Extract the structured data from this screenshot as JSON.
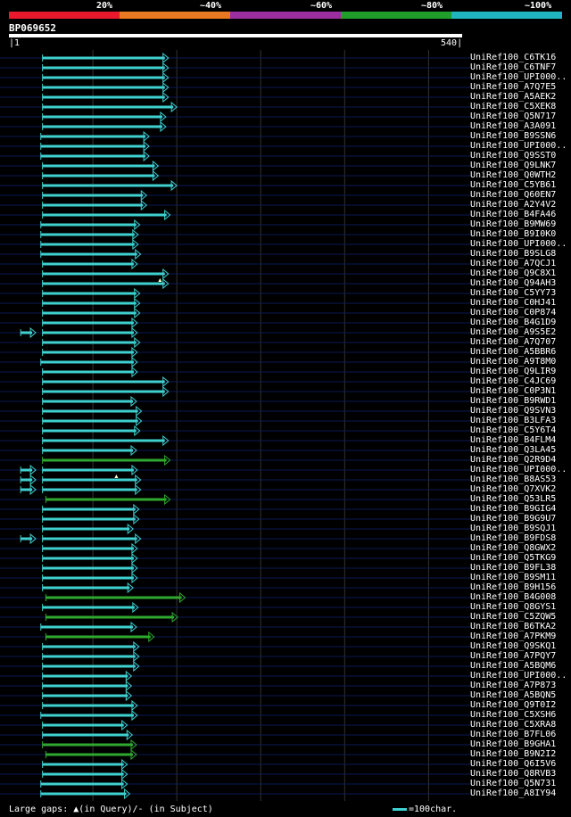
{
  "legend": [
    {
      "label": "20%",
      "color": "#e8192c"
    },
    {
      "label": "~40%",
      "color": "#e87920"
    },
    {
      "label": "~60%",
      "color": "#9b2fa0"
    },
    {
      "label": "~80%",
      "color": "#1f9e2a"
    },
    {
      "label": "~100%",
      "color": "#1fb4bf"
    }
  ],
  "query": {
    "id": "BP069652",
    "start": "1",
    "end": "540",
    "length": 540
  },
  "colors": {
    "cyan": "#3fd0d0",
    "green": "#2fa82f",
    "grid": "#333333",
    "row_line": "#0a1a55"
  },
  "hits": [
    {
      "name": "UniRef100_C6TK16",
      "start": 40,
      "end": 190,
      "color": "cyan"
    },
    {
      "name": "UniRef100_C6TNF7",
      "start": 40,
      "end": 190,
      "color": "cyan"
    },
    {
      "name": "UniRef100_UPI000..",
      "start": 40,
      "end": 190,
      "color": "cyan"
    },
    {
      "name": "UniRef100_A7Q7E5",
      "start": 40,
      "end": 190,
      "color": "cyan"
    },
    {
      "name": "UniRef100_A5AEK2",
      "start": 40,
      "end": 190,
      "color": "cyan"
    },
    {
      "name": "UniRef100_C5XEK8",
      "start": 40,
      "end": 200,
      "color": "cyan"
    },
    {
      "name": "UniRef100_Q5N717",
      "start": 40,
      "end": 187,
      "color": "cyan"
    },
    {
      "name": "UniRef100_A3A091",
      "start": 40,
      "end": 187,
      "color": "cyan"
    },
    {
      "name": "UniRef100_B9SSN6",
      "start": 38,
      "end": 167,
      "color": "cyan"
    },
    {
      "name": "UniRef100_UPI000..",
      "start": 38,
      "end": 167,
      "color": "cyan"
    },
    {
      "name": "UniRef100_Q9SST0",
      "start": 38,
      "end": 167,
      "color": "cyan"
    },
    {
      "name": "UniRef100_Q9LNK7",
      "start": 40,
      "end": 178,
      "color": "cyan"
    },
    {
      "name": "UniRef100_Q0WTH2",
      "start": 40,
      "end": 178,
      "color": "cyan"
    },
    {
      "name": "UniRef100_C5YB61",
      "start": 40,
      "end": 200,
      "color": "cyan"
    },
    {
      "name": "UniRef100_Q60EN7",
      "start": 40,
      "end": 164,
      "color": "cyan"
    },
    {
      "name": "UniRef100_A2Y4V2",
      "start": 40,
      "end": 164,
      "color": "cyan"
    },
    {
      "name": "UniRef100_B4FA46",
      "start": 40,
      "end": 192,
      "color": "cyan"
    },
    {
      "name": "UniRef100_B9MW69",
      "start": 38,
      "end": 156,
      "color": "cyan"
    },
    {
      "name": "UniRef100_B9I0K0",
      "start": 38,
      "end": 154,
      "color": "cyan"
    },
    {
      "name": "UniRef100_UPI000..",
      "start": 38,
      "end": 154,
      "color": "cyan"
    },
    {
      "name": "UniRef100_B9SLG8",
      "start": 38,
      "end": 157,
      "color": "cyan"
    },
    {
      "name": "UniRef100_A7QCJ1",
      "start": 40,
      "end": 153,
      "color": "cyan"
    },
    {
      "name": "UniRef100_Q9C8X1",
      "start": 40,
      "end": 190,
      "color": "cyan"
    },
    {
      "name": "UniRef100_Q94AH3",
      "start": 40,
      "end": 190,
      "color": "cyan",
      "mark": 180
    },
    {
      "name": "UniRef100_C5YY73",
      "start": 40,
      "end": 156,
      "color": "cyan"
    },
    {
      "name": "UniRef100_C0HJ41",
      "start": 40,
      "end": 156,
      "color": "cyan"
    },
    {
      "name": "UniRef100_C0P874",
      "start": 40,
      "end": 156,
      "color": "cyan"
    },
    {
      "name": "UniRef100_B4G1D9",
      "start": 40,
      "end": 153,
      "color": "cyan"
    },
    {
      "name": "UniRef100_A9S5E2",
      "start": 40,
      "end": 153,
      "color": "cyan",
      "extra": [
        14,
        32
      ]
    },
    {
      "name": "UniRef100_A7Q707",
      "start": 40,
      "end": 156,
      "color": "cyan"
    },
    {
      "name": "UniRef100_A5BBR6",
      "start": 40,
      "end": 153,
      "color": "cyan"
    },
    {
      "name": "UniRef100_A9T8M0",
      "start": 38,
      "end": 153,
      "color": "cyan"
    },
    {
      "name": "UniRef100_Q9LIR9",
      "start": 40,
      "end": 153,
      "color": "cyan"
    },
    {
      "name": "UniRef100_C4JC69",
      "start": 40,
      "end": 190,
      "color": "cyan"
    },
    {
      "name": "UniRef100_C0P3N1",
      "start": 40,
      "end": 190,
      "color": "cyan"
    },
    {
      "name": "UniRef100_B9RWD1",
      "start": 40,
      "end": 152,
      "color": "cyan"
    },
    {
      "name": "UniRef100_Q9SVN3",
      "start": 40,
      "end": 158,
      "color": "cyan"
    },
    {
      "name": "UniRef100_B3LFA3",
      "start": 40,
      "end": 158,
      "color": "cyan"
    },
    {
      "name": "UniRef100_C5Y6T4",
      "start": 40,
      "end": 156,
      "color": "cyan"
    },
    {
      "name": "UniRef100_B4FLM4",
      "start": 40,
      "end": 190,
      "color": "cyan"
    },
    {
      "name": "UniRef100_Q3LA45",
      "start": 40,
      "end": 152,
      "color": "cyan"
    },
    {
      "name": "UniRef100_Q2R9D4",
      "start": 40,
      "end": 192,
      "color": "green"
    },
    {
      "name": "UniRef100_UPI000..",
      "start": 40,
      "end": 153,
      "color": "cyan",
      "extra": [
        14,
        32
      ]
    },
    {
      "name": "UniRef100_B8AS53",
      "start": 40,
      "end": 157,
      "color": "cyan",
      "extra": [
        14,
        32
      ],
      "mark": 128
    },
    {
      "name": "UniRef100_Q7XVK2",
      "start": 40,
      "end": 157,
      "color": "cyan",
      "extra": [
        14,
        32
      ]
    },
    {
      "name": "UniRef100_Q53LR5",
      "start": 44,
      "end": 192,
      "color": "green"
    },
    {
      "name": "UniRef100_B9GIG4",
      "start": 40,
      "end": 155,
      "color": "cyan"
    },
    {
      "name": "UniRef100_B9G9U7",
      "start": 40,
      "end": 155,
      "color": "cyan"
    },
    {
      "name": "UniRef100_B9SQJ1",
      "start": 40,
      "end": 148,
      "color": "cyan"
    },
    {
      "name": "UniRef100_B9FDS8",
      "start": 40,
      "end": 157,
      "color": "cyan",
      "extra": [
        14,
        32
      ]
    },
    {
      "name": "UniRef100_Q8GWX2",
      "start": 40,
      "end": 153,
      "color": "cyan"
    },
    {
      "name": "UniRef100_Q5TKG9",
      "start": 40,
      "end": 153,
      "color": "cyan"
    },
    {
      "name": "UniRef100_B9FL38",
      "start": 40,
      "end": 153,
      "color": "cyan"
    },
    {
      "name": "UniRef100_B9SM11",
      "start": 40,
      "end": 153,
      "color": "cyan"
    },
    {
      "name": "UniRef100_B9H156",
      "start": 40,
      "end": 148,
      "color": "cyan"
    },
    {
      "name": "UniRef100_B4G008",
      "start": 44,
      "end": 210,
      "color": "green"
    },
    {
      "name": "UniRef100_Q8GYS1",
      "start": 40,
      "end": 154,
      "color": "cyan"
    },
    {
      "name": "UniRef100_C5ZQW5",
      "start": 44,
      "end": 201,
      "color": "green"
    },
    {
      "name": "UniRef100_B6TKA2",
      "start": 38,
      "end": 152,
      "color": "cyan"
    },
    {
      "name": "UniRef100_A7PKM9",
      "start": 44,
      "end": 173,
      "color": "green"
    },
    {
      "name": "UniRef100_Q9SKQ1",
      "start": 40,
      "end": 155,
      "color": "cyan"
    },
    {
      "name": "UniRef100_A7PQY7",
      "start": 40,
      "end": 155,
      "color": "cyan"
    },
    {
      "name": "UniRef100_A5BQM6",
      "start": 40,
      "end": 155,
      "color": "cyan"
    },
    {
      "name": "UniRef100_UPI000..",
      "start": 40,
      "end": 146,
      "color": "cyan"
    },
    {
      "name": "UniRef100_A7P873",
      "start": 40,
      "end": 146,
      "color": "cyan"
    },
    {
      "name": "UniRef100_A5BQN5",
      "start": 40,
      "end": 146,
      "color": "cyan"
    },
    {
      "name": "UniRef100_Q9T0I2",
      "start": 40,
      "end": 153,
      "color": "cyan"
    },
    {
      "name": "UniRef100_C5XSH6",
      "start": 38,
      "end": 153,
      "color": "cyan"
    },
    {
      "name": "UniRef100_C5XRA8",
      "start": 40,
      "end": 141,
      "color": "cyan"
    },
    {
      "name": "UniRef100_B7FL06",
      "start": 40,
      "end": 147,
      "color": "cyan"
    },
    {
      "name": "UniRef100_B9GHA1",
      "start": 40,
      "end": 152,
      "color": "green"
    },
    {
      "name": "UniRef100_B9N2I2",
      "start": 44,
      "end": 152,
      "color": "green"
    },
    {
      "name": "UniRef100_Q6I5V6",
      "start": 40,
      "end": 141,
      "color": "cyan"
    },
    {
      "name": "UniRef100_Q8RVB3",
      "start": 40,
      "end": 141,
      "color": "cyan"
    },
    {
      "name": "UniRef100_Q5N731",
      "start": 38,
      "end": 141,
      "color": "cyan"
    },
    {
      "name": "UniRef100_A8IY94",
      "start": 38,
      "end": 144,
      "color": "cyan"
    }
  ],
  "footer": {
    "gaps_label": "Large gaps:",
    "query_gap": "(in Query)/",
    "subject_gap": "- (in Subject)",
    "scale_label": "=100char."
  }
}
